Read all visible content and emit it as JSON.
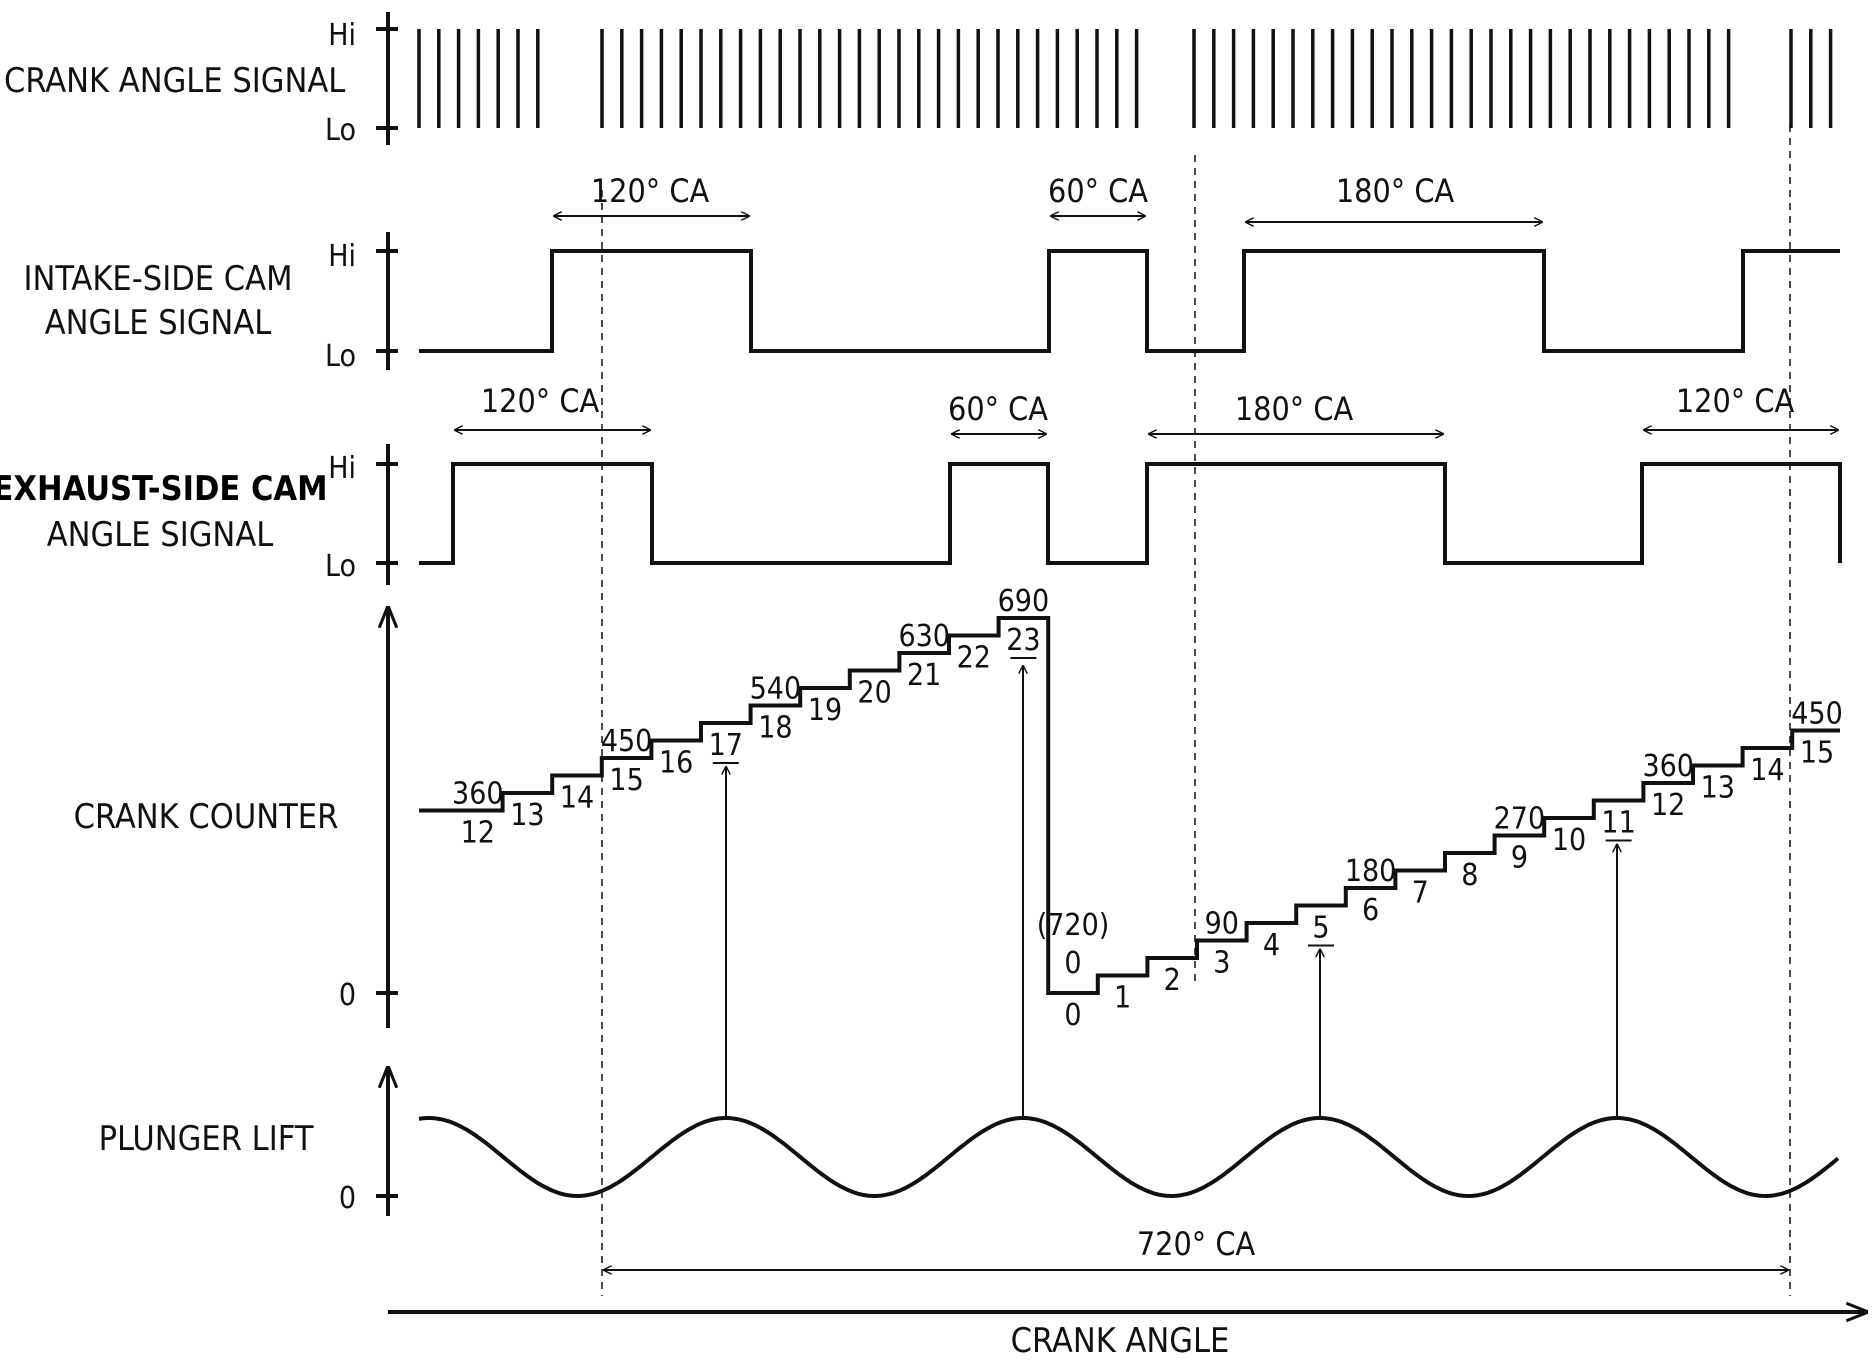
{
  "rows": {
    "crank_angle_signal": "CRANK ANGLE SIGNAL",
    "intake_line1": "INTAKE-SIDE CAM",
    "intake_line2": "ANGLE SIGNAL",
    "exhaust_line1": "EXHAUST-SIDE CAM",
    "exhaust_line2": "ANGLE SIGNAL",
    "crank_counter": "CRANK COUNTER",
    "plunger_lift": "PLUNGER LIFT"
  },
  "levels": {
    "hi": "Hi",
    "lo": "Lo",
    "zero": "0"
  },
  "intervals": {
    "intake": [
      "120° CA",
      "60° CA",
      "180° CA"
    ],
    "exhaust": [
      "120° CA",
      "60° CA",
      "180° CA",
      "120° CA"
    ],
    "cycle": "720° CA"
  },
  "x_axis_label": "CRANK ANGLE",
  "counter": {
    "steps_before_reset": [
      "12",
      "13",
      "14",
      "15",
      "16",
      "17",
      "18",
      "19",
      "20",
      "21",
      "22",
      "23"
    ],
    "angle_labels_before_reset": [
      "360",
      "450",
      "540",
      "630",
      "690"
    ],
    "reset_label": "(720)",
    "reset_value": "0",
    "steps_after_reset": [
      "0",
      "1",
      "2",
      "3",
      "4",
      "5",
      "6",
      "7",
      "8",
      "9",
      "10",
      "11",
      "12",
      "13",
      "14",
      "15"
    ],
    "angle_labels_after_reset": [
      "90",
      "180",
      "270",
      "360",
      "450"
    ],
    "plunger_peak_counts": [
      "17",
      "23",
      "5",
      "11"
    ]
  }
}
